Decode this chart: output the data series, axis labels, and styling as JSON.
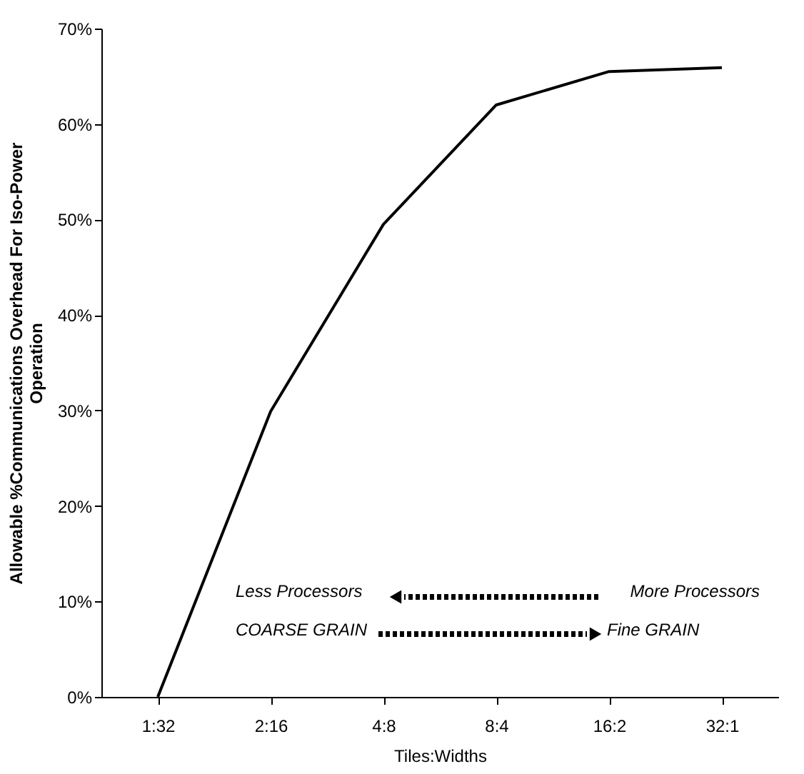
{
  "chart_data": {
    "type": "line",
    "xlabel": "Tiles:Widths",
    "ylabel": "Allowable %Communications Overhead For Iso-Power Operation",
    "categories": [
      "1:32",
      "2:16",
      "4:8",
      "8:4",
      "16:2",
      "32:1"
    ],
    "series": [
      {
        "color": "#000000",
        "values": [
          0,
          29.9,
          49.5,
          62,
          65.5,
          65.9
        ]
      }
    ],
    "ylim": [
      0,
      70
    ],
    "yticks": [
      {
        "value": 0,
        "label": "0%"
      },
      {
        "value": 10,
        "label": "10%"
      },
      {
        "value": 20,
        "label": "20%"
      },
      {
        "value": 30,
        "label": "30%"
      },
      {
        "value": 40,
        "label": "40%"
      },
      {
        "value": 50,
        "label": "50%"
      },
      {
        "value": 60,
        "label": "60%"
      },
      {
        "value": 70,
        "label": "70%"
      }
    ],
    "annotations": [
      "Less Processors",
      "More Processors",
      "COARSE GRAIN",
      "Fine GRAIN"
    ],
    "grid": false,
    "marker": "none",
    "line_style": "solid"
  }
}
